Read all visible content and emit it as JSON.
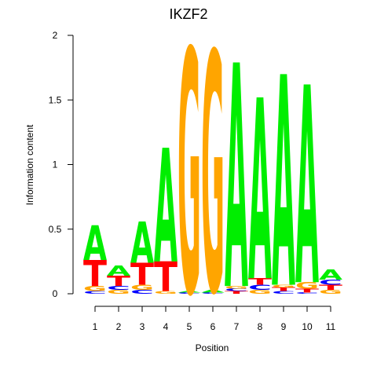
{
  "chart_data": {
    "type": "logo",
    "title": "IKZF2",
    "x_label": "Position",
    "y_label": "Information content",
    "categories": [
      "1",
      "2",
      "3",
      "4",
      "5",
      "6",
      "7",
      "8",
      "9",
      "10",
      "11"
    ],
    "colors": {
      "A": "#00ee00",
      "C": "#0000ff",
      "G": "#ffa500",
      "T": "#ff0000"
    },
    "ylim": [
      0,
      2
    ],
    "yticks": [
      0,
      0.5,
      1,
      1.5,
      2
    ],
    "stacks": [
      [
        {
          "letter": "C",
          "value": 0.02
        },
        {
          "letter": "G",
          "value": 0.04
        },
        {
          "letter": "T",
          "value": 0.2
        },
        {
          "letter": "A",
          "value": 0.27
        }
      ],
      [
        {
          "letter": "G",
          "value": 0.03
        },
        {
          "letter": "C",
          "value": 0.03
        },
        {
          "letter": "T",
          "value": 0.08
        },
        {
          "letter": "A",
          "value": 0.08
        }
      ],
      [
        {
          "letter": "C",
          "value": 0.03
        },
        {
          "letter": "G",
          "value": 0.04
        },
        {
          "letter": "T",
          "value": 0.17
        },
        {
          "letter": "A",
          "value": 0.32
        }
      ],
      [
        {
          "letter": "G",
          "value": 0.02
        },
        {
          "letter": "T",
          "value": 0.23
        },
        {
          "letter": "A",
          "value": 0.88
        }
      ],
      [
        {
          "letter": "C",
          "value": 0.01
        },
        {
          "letter": "A",
          "value": 0.01
        },
        {
          "letter": "G",
          "value": 1.88
        }
      ],
      [
        {
          "letter": "C",
          "value": 0.01
        },
        {
          "letter": "A",
          "value": 0.02
        },
        {
          "letter": "G",
          "value": 1.85
        }
      ],
      [
        {
          "letter": "T",
          "value": 0.02
        },
        {
          "letter": "C",
          "value": 0.02
        },
        {
          "letter": "G",
          "value": 0.02
        },
        {
          "letter": "A",
          "value": 1.73
        }
      ],
      [
        {
          "letter": "G",
          "value": 0.03
        },
        {
          "letter": "C",
          "value": 0.04
        },
        {
          "letter": "T",
          "value": 0.05
        },
        {
          "letter": "A",
          "value": 1.4
        }
      ],
      [
        {
          "letter": "C",
          "value": 0.02
        },
        {
          "letter": "T",
          "value": 0.03
        },
        {
          "letter": "G",
          "value": 0.02
        },
        {
          "letter": "A",
          "value": 1.63
        }
      ],
      [
        {
          "letter": "C",
          "value": 0.01
        },
        {
          "letter": "T",
          "value": 0.03
        },
        {
          "letter": "G",
          "value": 0.05
        },
        {
          "letter": "A",
          "value": 1.53
        }
      ],
      [
        {
          "letter": "G",
          "value": 0.03
        },
        {
          "letter": "T",
          "value": 0.04
        },
        {
          "letter": "C",
          "value": 0.04
        },
        {
          "letter": "A",
          "value": 0.08
        }
      ]
    ]
  }
}
